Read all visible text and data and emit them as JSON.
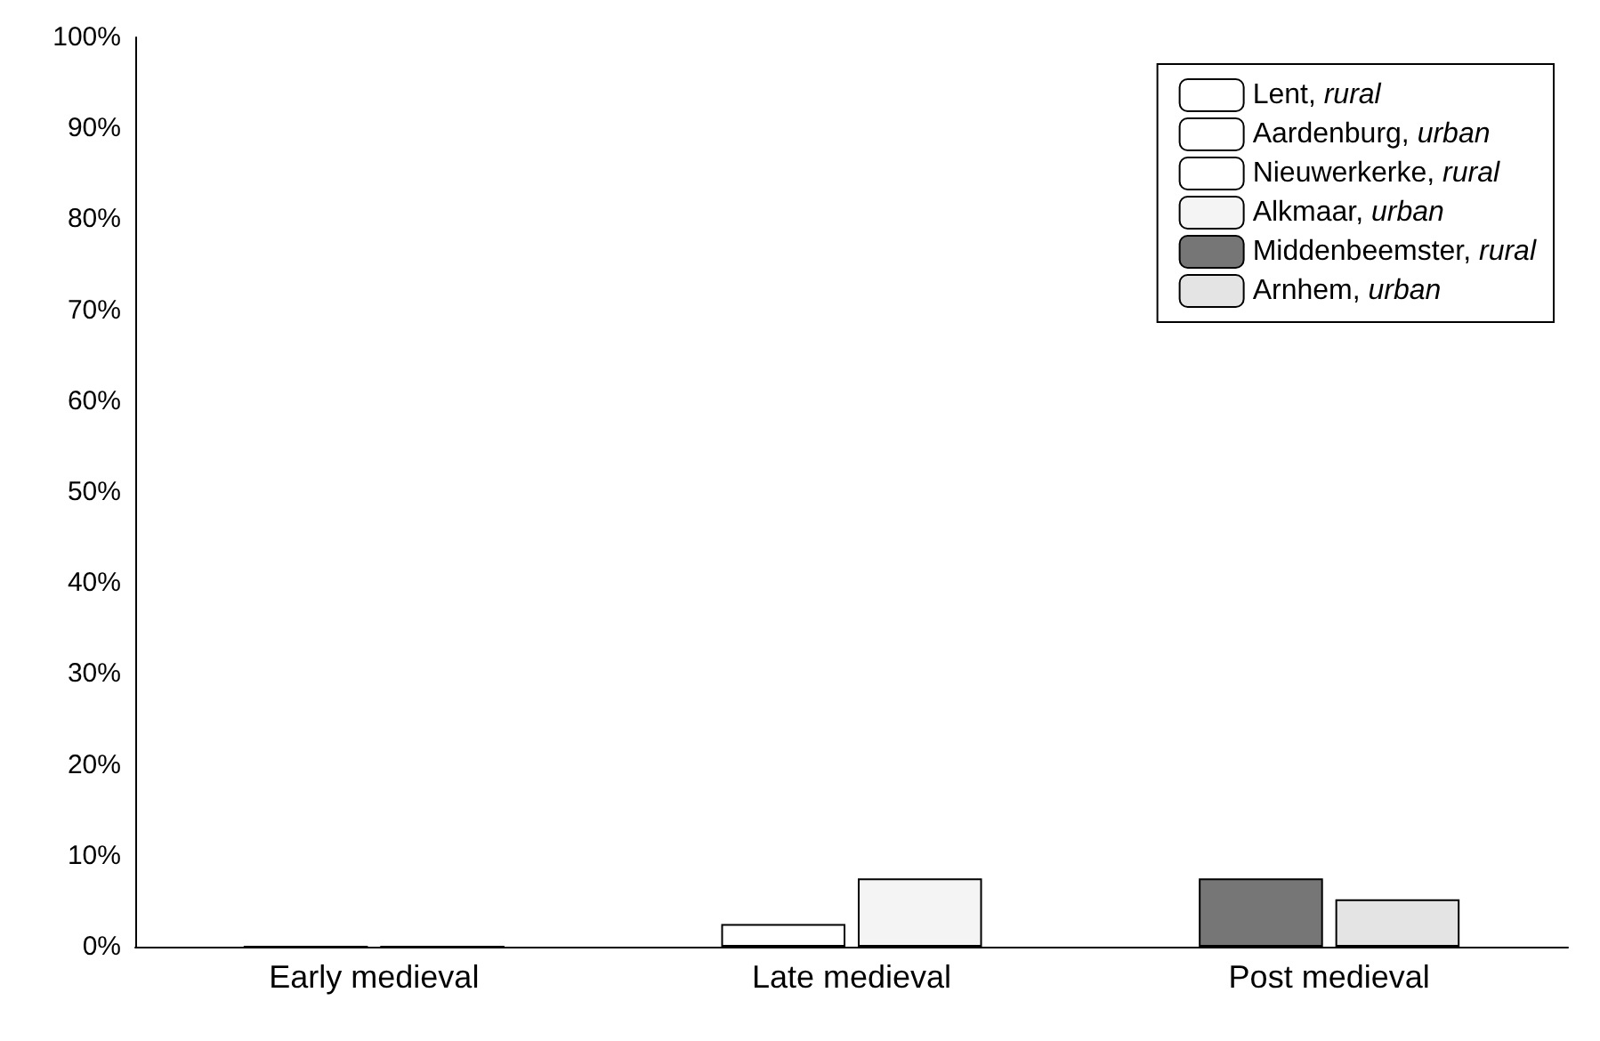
{
  "chart_data": {
    "type": "bar",
    "categories": [
      "Early medieval",
      "Late medieval",
      "Post medieval"
    ],
    "series": [
      {
        "name": "Lent, rural",
        "color": "#ffffff",
        "values": [
          0,
          null,
          null
        ]
      },
      {
        "name": "Aardenburg, urban",
        "color": "#ffffff",
        "values": [
          0,
          null,
          null
        ]
      },
      {
        "name": "Nieuwerkerke, rural",
        "color": "#ffffff",
        "values": [
          null,
          2.5,
          null
        ]
      },
      {
        "name": "Alkmaar, urban",
        "color": "#f4f4f4",
        "values": [
          null,
          7.5,
          null
        ]
      },
      {
        "name": "Middenbeemster, rural",
        "color": "#767676",
        "values": [
          null,
          null,
          7.5
        ]
      },
      {
        "name": "Arnhem, urban",
        "color": "#e4e4e4",
        "values": [
          null,
          null,
          5.2
        ]
      }
    ],
    "ylim": [
      0,
      100
    ],
    "yticks": [
      {
        "value": 0,
        "label": "0%"
      },
      {
        "value": 10,
        "label": "10%"
      },
      {
        "value": 20,
        "label": "20%"
      },
      {
        "value": 30,
        "label": "30%"
      },
      {
        "value": 40,
        "label": "40%"
      },
      {
        "value": 50,
        "label": "50%"
      },
      {
        "value": 60,
        "label": "60%"
      },
      {
        "value": 70,
        "label": "70%"
      },
      {
        "value": 80,
        "label": "80%"
      },
      {
        "value": 90,
        "label": "90%"
      },
      {
        "value": 100,
        "label": "100%"
      }
    ],
    "grid": false,
    "legend": "top right"
  }
}
